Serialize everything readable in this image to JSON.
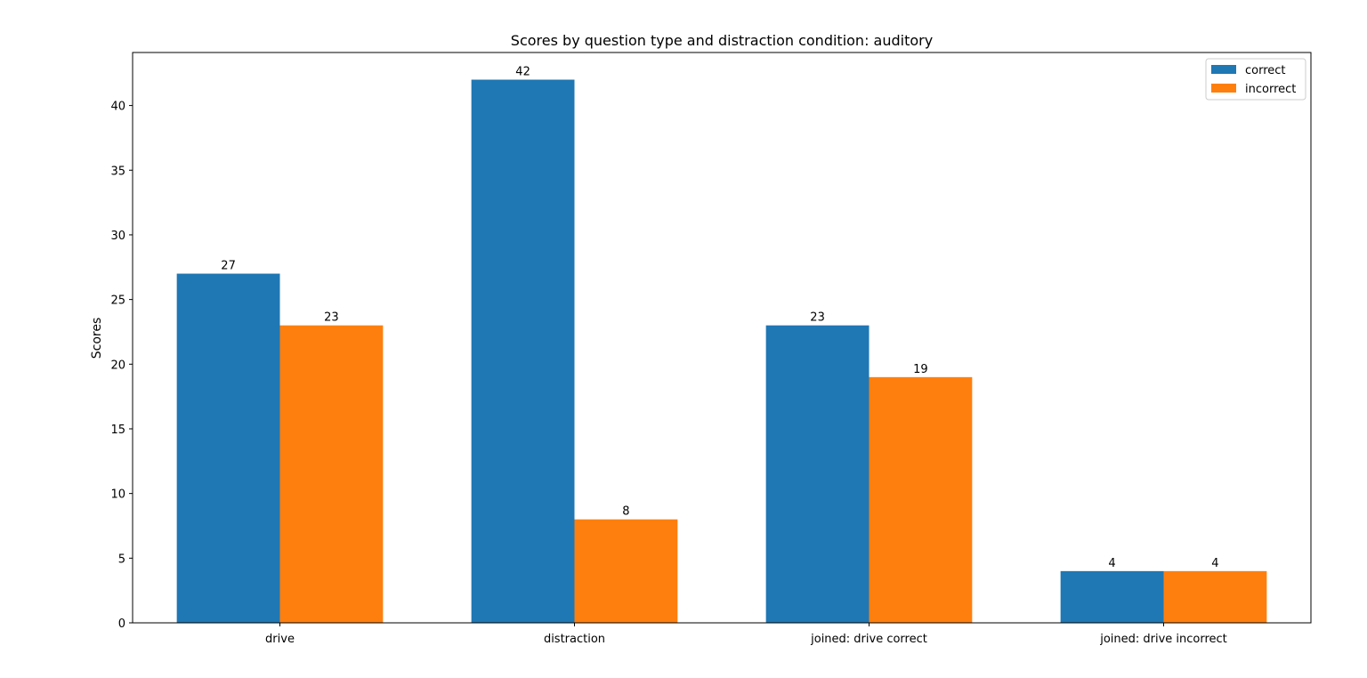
{
  "chart_data": {
    "type": "bar",
    "title": "Scores by question type and distraction condition: auditory",
    "xlabel": "",
    "ylabel": "Scores",
    "categories": [
      "drive",
      "distraction",
      "joined: drive correct",
      "joined: drive incorrect"
    ],
    "series": [
      {
        "name": "correct",
        "values": [
          27,
          42,
          23,
          4
        ],
        "color": "#1f77b4"
      },
      {
        "name": "incorrect",
        "values": [
          23,
          8,
          19,
          4
        ],
        "color": "#ff7f0e"
      }
    ],
    "ylim": [
      0,
      44.1
    ],
    "yticks": [
      0,
      5,
      10,
      15,
      20,
      25,
      30,
      35,
      40
    ],
    "legend_position": "top-right",
    "grid": false
  }
}
